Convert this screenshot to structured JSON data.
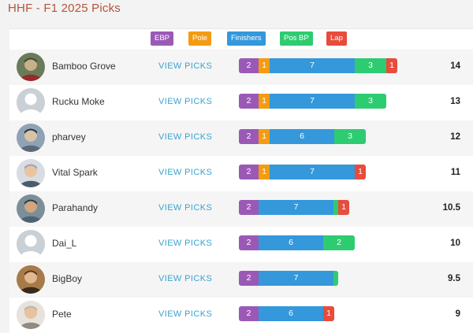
{
  "page_title": "HHF - F1 2025 Picks",
  "colors": {
    "ebp": "#9b59b6",
    "pole": "#f39c12",
    "finishers": "#3498db",
    "pos_bp": "#2ecc71",
    "lap": "#e74c3c"
  },
  "legend": [
    {
      "key": "ebp",
      "label": "EBP"
    },
    {
      "key": "pole",
      "label": "Pole"
    },
    {
      "key": "finishers",
      "label": "Finishers"
    },
    {
      "key": "pos_bp",
      "label": "Pos BP"
    },
    {
      "key": "lap",
      "label": "Lap"
    }
  ],
  "view_picks_label": "VIEW PICKS",
  "rows": [
    {
      "name": "Bamboo Grove",
      "avatar": "photo-avatar-1",
      "total": "14",
      "scores": {
        "ebp": 2,
        "pole": 1,
        "finishers": 7,
        "pos_bp": 3,
        "lap": 1
      }
    },
    {
      "name": "Rucku Moke",
      "avatar": "default-user-icon",
      "total": "13",
      "scores": {
        "ebp": 2,
        "pole": 1,
        "finishers": 7,
        "pos_bp": 3,
        "lap": 0
      }
    },
    {
      "name": "pharvey",
      "avatar": "photo-avatar-2",
      "total": "12",
      "scores": {
        "ebp": 2,
        "pole": 1,
        "finishers": 6,
        "pos_bp": 3,
        "lap": 0
      }
    },
    {
      "name": "Vital Spark",
      "avatar": "photo-avatar-3",
      "total": "11",
      "scores": {
        "ebp": 2,
        "pole": 1,
        "finishers": 7,
        "pos_bp": 0,
        "lap": 1
      }
    },
    {
      "name": "Parahandy",
      "avatar": "photo-avatar-4",
      "total": "10.5",
      "scores": {
        "ebp": 2,
        "pole": 0,
        "finishers": 7,
        "pos_bp": 0.5,
        "lap": 1
      }
    },
    {
      "name": "Dai_L",
      "avatar": "default-user-icon",
      "total": "10",
      "scores": {
        "ebp": 2,
        "pole": 0,
        "finishers": 6,
        "pos_bp": 2,
        "lap": 0
      }
    },
    {
      "name": "BigBoy",
      "avatar": "photo-avatar-5",
      "total": "9.5",
      "scores": {
        "ebp": 2,
        "pole": 0,
        "finishers": 7,
        "pos_bp": 0.5,
        "lap": 0
      }
    },
    {
      "name": "Pete",
      "avatar": "photo-avatar-6",
      "total": "9",
      "scores": {
        "ebp": 2,
        "pole": 0,
        "finishers": 6,
        "pos_bp": 0,
        "lap": 1
      }
    }
  ]
}
